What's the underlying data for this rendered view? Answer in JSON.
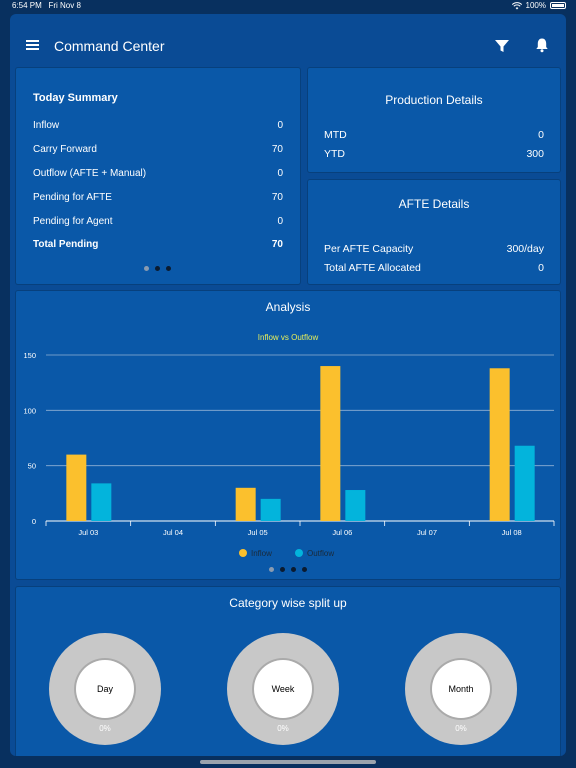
{
  "status_bar": {
    "time": "6:54 PM",
    "date": "Fri Nov 8",
    "battery": "100%"
  },
  "header": {
    "title": "Command Center",
    "icons": [
      "menu-icon",
      "filter-icon",
      "bell-icon"
    ]
  },
  "today_summary": {
    "title": "Today Summary",
    "rows": [
      {
        "label": "Inflow",
        "value": "0"
      },
      {
        "label": "Carry Forward",
        "value": "70"
      },
      {
        "label": "Outflow (AFTE + Manual)",
        "value": "0"
      },
      {
        "label": "Pending for AFTE",
        "value": "70"
      },
      {
        "label": "Pending for Agent",
        "value": "0"
      },
      {
        "label": "Total Pending",
        "value": "70"
      }
    ],
    "page_count": 3,
    "active_page": 0
  },
  "production_details": {
    "title": "Production Details",
    "rows": [
      {
        "label": "MTD",
        "value": "0"
      },
      {
        "label": "YTD",
        "value": "300"
      }
    ]
  },
  "afte_details": {
    "title": "AFTE Details",
    "rows": [
      {
        "label": "Per AFTE Capacity",
        "value": "300/day"
      },
      {
        "label": "Total AFTE Allocated",
        "value": "0"
      }
    ]
  },
  "analysis": {
    "title": "Analysis",
    "page_count": 4,
    "active_page": 0
  },
  "chart_data": {
    "type": "bar",
    "title": "Inflow vs Outflow",
    "categories": [
      "Jul 03",
      "Jul 04",
      "Jul 05",
      "Jul 06",
      "Jul 07",
      "Jul 08"
    ],
    "series": [
      {
        "name": "Inflow",
        "values": [
          60,
          0,
          30,
          140,
          0,
          138
        ],
        "color": "#fbc02d"
      },
      {
        "name": "Outflow",
        "values": [
          34,
          0,
          20,
          28,
          0,
          68
        ],
        "color": "#03b4dc"
      }
    ],
    "yticks": [
      0,
      50,
      100,
      150
    ],
    "ylim": [
      0,
      150
    ],
    "grid": true,
    "legend": "bottom"
  },
  "category_split": {
    "title": "Category wise split up",
    "items": [
      {
        "label": "Day",
        "percent": "0%"
      },
      {
        "label": "Week",
        "percent": "0%"
      },
      {
        "label": "Month",
        "percent": "0%"
      }
    ]
  },
  "colors": {
    "background": "#08305f",
    "app": "#0a4b95",
    "card": "#0a58a8",
    "chart_title": "#e8f05a"
  }
}
